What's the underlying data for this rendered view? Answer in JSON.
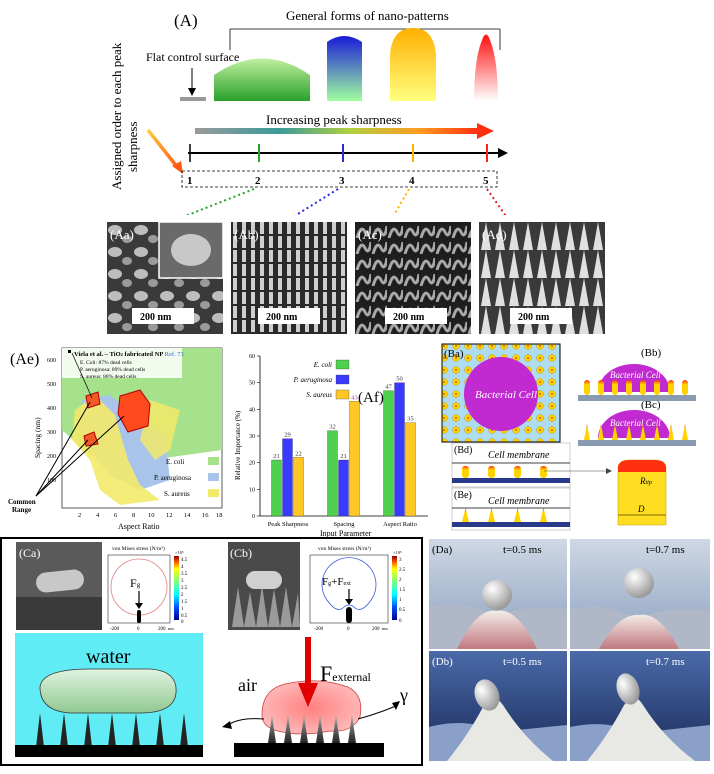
{
  "panel_A": {
    "label": "(A)",
    "general_forms": "General forms of nano-patterns",
    "flat_control": "Flat control surface",
    "assigned_order": "Assigned order to each peak",
    "assigned_order_2": "sharpness",
    "increasing": "Increasing peak sharpness",
    "order_numbers": [
      "1",
      "2",
      "3",
      "4",
      "5"
    ]
  },
  "sem_panels": [
    {
      "label": "(Aa)",
      "scale": "200 nm"
    },
    {
      "label": "(Ab)",
      "scale": "200 nm"
    },
    {
      "label": "(Ac)",
      "scale": "200 nm"
    },
    {
      "label": "(Ad)",
      "scale": "200 nm"
    }
  ],
  "panel_Ae": {
    "label": "(Ae)",
    "annotation_title": "Viela et al. – TiO",
    "annotation_sub": "2",
    "annotation_rest": " fabricated NP",
    "annotation_ref": "Ref. 73",
    "annotation_lines": [
      "E. Coli: 87% dead cells",
      "P. aeruginosa: 89% dead cells",
      "S. aureus: 88% dead cells"
    ],
    "ylabel": "Spacing (nm)",
    "xlabel": "Aspect Ratio",
    "common_range": "Common",
    "common_range_2": "Range",
    "legend": [
      "E. coli",
      "P. aeruginosa",
      "S. aureus"
    ],
    "xticks": [
      "2",
      "4",
      "6",
      "8",
      "10",
      "12",
      "14",
      "16",
      "18"
    ],
    "yticks": [
      "100",
      "200",
      "300",
      "400",
      "500",
      "600"
    ]
  },
  "chart_data": {
    "type": "bar",
    "title": "(Af)",
    "categories": [
      "Peak Sharpness",
      "Spacing",
      "Aspect Ratio"
    ],
    "series": [
      {
        "name": "E. coli",
        "values": [
          21,
          32,
          47
        ],
        "color": "#4fd04f"
      },
      {
        "name": "P. aeruginosa",
        "values": [
          29,
          21,
          50
        ],
        "color": "#3a3aff"
      },
      {
        "name": "S. aureus",
        "values": [
          22,
          43,
          35
        ],
        "color": "#ffc726"
      }
    ],
    "xlabel": "Input Parameter",
    "ylabel": "Relative  Importance (%)",
    "ylim": [
      0,
      60
    ],
    "yticks": [
      "0",
      "10",
      "20",
      "30",
      "40",
      "50",
      "60"
    ]
  },
  "panel_B": {
    "Ba": "(Ba)",
    "Bb": "(Bb)",
    "Bc": "(Bc)",
    "Bd": "(Bd)",
    "Be": "(Be)",
    "bacterial_cell": "Bacterial  Cell",
    "bacterial": "Bacterial",
    "cell": "Cell",
    "cell_membrane": "Cell membrane",
    "r_tip": "R",
    "r_tip_sub": "tip",
    "D": "D"
  },
  "panel_C": {
    "Ca": "(Ca)",
    "Cb": "(Cb)",
    "stress_title": "von Mises stress (N/m²)",
    "fg": "F",
    "fg_sub": "g",
    "fgext": "F",
    "fgext_sub": "g",
    "fgext_plus": "+F",
    "fgext_sub2": "ext",
    "scale_a": [
      "4.5",
      "4",
      "3.5",
      "3",
      "2.5",
      "2",
      "1.5",
      "1",
      "0.5",
      "0"
    ],
    "scale_b": [
      "3",
      "2.5",
      "2",
      "1.5",
      "1",
      "0.5",
      "0"
    ],
    "exp": "×10⁵",
    "xtick_a": [
      "-200",
      "0",
      "200"
    ],
    "unit": "nm",
    "water": "water",
    "air": "air",
    "f_external": "F",
    "f_external_sub": "external",
    "gamma": "γ"
  },
  "panel_D": {
    "Da": "(Da)",
    "Db": "(Db)",
    "t1": "t=0.5 ms",
    "t2": "t=0.7 ms"
  }
}
